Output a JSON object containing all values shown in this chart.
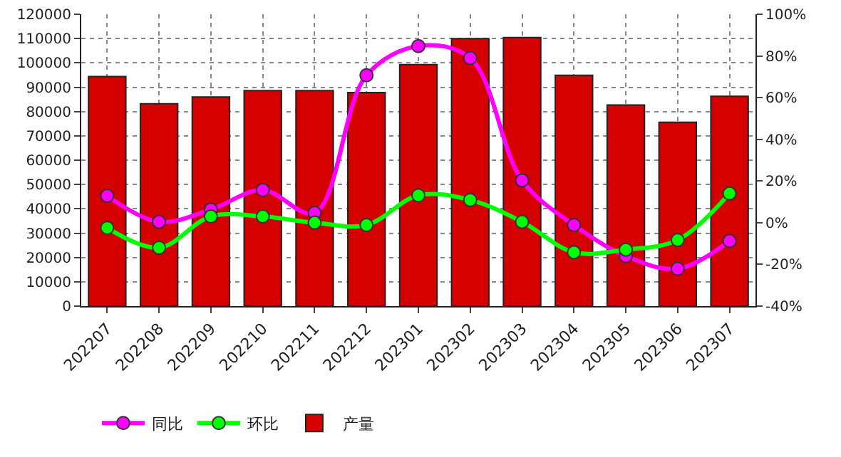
{
  "chart_data": {
    "type": "bar",
    "categories": [
      "202207",
      "202208",
      "202209",
      "202210",
      "202211",
      "202212",
      "202301",
      "202302",
      "202303",
      "202304",
      "202305",
      "202306",
      "202307"
    ],
    "series": [
      {
        "name": "同比",
        "type": "line",
        "axis": "y2",
        "color": "#ff00ff",
        "values": [
          12.9,
          0.4,
          6.3,
          15.7,
          4.7,
          70.7,
          84.7,
          79,
          20.3,
          -1.1,
          -16,
          -22.1,
          -8.8
        ]
      },
      {
        "name": "环比",
        "type": "line",
        "axis": "y2",
        "color": "#00ff00",
        "values": [
          -2.5,
          -12,
          3,
          3,
          0,
          -1.1,
          13.1,
          10.9,
          0.4,
          -14.2,
          -12.9,
          -8.3,
          14
        ]
      },
      {
        "name": "产量",
        "color": "#d40000",
        "values": [
          94400,
          83200,
          86000,
          88600,
          88600,
          87800,
          99300,
          110000,
          110400,
          94900,
          82700,
          75600,
          86300
        ]
      }
    ],
    "ylim": [
      0,
      120000
    ],
    "yticks": [
      0,
      10000,
      20000,
      30000,
      40000,
      50000,
      60000,
      70000,
      80000,
      90000,
      100000,
      110000,
      120000
    ],
    "y2lim": [
      -40,
      100
    ],
    "y2ticks": [
      {
        "value": -40,
        "label": "-40%"
      },
      {
        "value": -20,
        "label": "-20%"
      },
      {
        "value": 0,
        "label": "0%"
      },
      {
        "value": 20,
        "label": "20%"
      },
      {
        "value": 40,
        "label": "40%"
      },
      {
        "value": 60,
        "label": "60%"
      },
      {
        "value": 80,
        "label": "80%"
      },
      {
        "value": 100,
        "label": "100%"
      }
    ],
    "grid": true,
    "legend": "bottom left",
    "marker": "circle",
    "line_style": "solid"
  }
}
